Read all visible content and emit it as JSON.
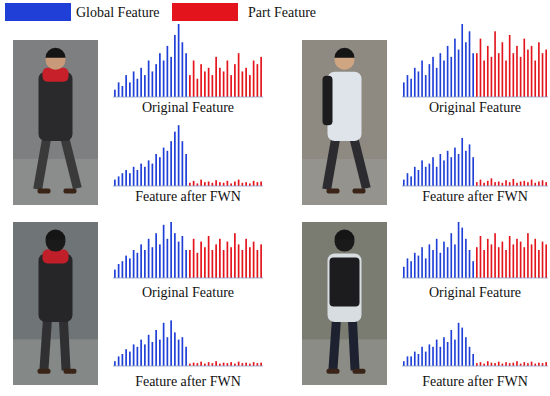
{
  "chart_data": [
    {
      "type": "bar",
      "title": "Original Feature",
      "tick_labels": false,
      "x": [
        1,
        2,
        3,
        4,
        5,
        6,
        7,
        8,
        9,
        10,
        11,
        12,
        13,
        14,
        15,
        16,
        17,
        18,
        19,
        20,
        21,
        22,
        23,
        24,
        25,
        26,
        27,
        28,
        29,
        30,
        31,
        32,
        33,
        34,
        35,
        36,
        37,
        38,
        39,
        40
      ],
      "xlim": [
        0.5,
        40.5
      ],
      "ylim": [
        0,
        1
      ],
      "series": [
        {
          "name": "Global Feature",
          "color": "#1f3fd6",
          "values": [
            0.1,
            0.2,
            0.15,
            0.3,
            0.2,
            0.35,
            0.25,
            0.4,
            0.3,
            0.5,
            0.35,
            0.45,
            0.6,
            0.5,
            0.7,
            0.55,
            0.85,
            1.0,
            0.75,
            0.6,
            null,
            null,
            null,
            null,
            null,
            null,
            null,
            null,
            null,
            null,
            null,
            null,
            null,
            null,
            null,
            null,
            null,
            null,
            null,
            null
          ]
        },
        {
          "name": "Part Feature",
          "color": "#e3141c",
          "values": [
            null,
            null,
            null,
            null,
            null,
            null,
            null,
            null,
            null,
            null,
            null,
            null,
            null,
            null,
            null,
            null,
            null,
            null,
            null,
            null,
            0.3,
            0.5,
            0.25,
            0.45,
            0.35,
            0.4,
            0.3,
            0.55,
            0.4,
            0.35,
            0.5,
            0.3,
            0.45,
            0.6,
            0.35,
            0.4,
            0.3,
            0.5,
            0.45,
            0.55
          ]
        }
      ]
    },
    {
      "type": "bar",
      "title": "Feature after FWN",
      "tick_labels": false,
      "x": [
        1,
        2,
        3,
        4,
        5,
        6,
        7,
        8,
        9,
        10,
        11,
        12,
        13,
        14,
        15,
        16,
        17,
        18,
        19,
        20,
        21,
        22,
        23,
        24,
        25,
        26,
        27,
        28,
        29,
        30,
        31,
        32,
        33,
        34,
        35,
        36,
        37,
        38,
        39,
        40
      ],
      "xlim": [
        0.5,
        40.5
      ],
      "ylim": [
        0,
        1
      ],
      "series": [
        {
          "name": "Global Feature",
          "color": "#1f3fd6",
          "values": [
            0.1,
            0.15,
            0.2,
            0.25,
            0.2,
            0.3,
            0.25,
            0.35,
            0.3,
            0.4,
            0.35,
            0.5,
            0.45,
            0.6,
            0.55,
            0.7,
            0.85,
            0.95,
            0.7,
            0.5,
            null,
            null,
            null,
            null,
            null,
            null,
            null,
            null,
            null,
            null,
            null,
            null,
            null,
            null,
            null,
            null,
            null,
            null,
            null,
            null
          ]
        },
        {
          "name": "Part Feature",
          "color": "#e3141c",
          "values": [
            null,
            null,
            null,
            null,
            null,
            null,
            null,
            null,
            null,
            null,
            null,
            null,
            null,
            null,
            null,
            null,
            null,
            null,
            null,
            null,
            0.05,
            0.08,
            0.04,
            0.1,
            0.06,
            0.07,
            0.05,
            0.09,
            0.06,
            0.05,
            0.08,
            0.04,
            0.07,
            0.1,
            0.05,
            0.06,
            0.04,
            0.08,
            0.06,
            0.07
          ]
        }
      ]
    },
    {
      "type": "bar",
      "title": "Original Feature",
      "tick_labels": false,
      "x": [
        1,
        2,
        3,
        4,
        5,
        6,
        7,
        8,
        9,
        10,
        11,
        12,
        13,
        14,
        15,
        16,
        17,
        18,
        19,
        20,
        21,
        22,
        23,
        24,
        25,
        26,
        27,
        28,
        29,
        30,
        31,
        32,
        33,
        34,
        35,
        36,
        37,
        38,
        39,
        40
      ],
      "xlim": [
        0.5,
        40.5
      ],
      "ylim": [
        0,
        1
      ],
      "series": [
        {
          "name": "Global Feature",
          "color": "#1f3fd6",
          "values": [
            0.2,
            0.3,
            0.25,
            0.4,
            0.35,
            0.5,
            0.3,
            0.45,
            0.55,
            0.4,
            0.6,
            0.5,
            0.7,
            0.55,
            0.8,
            0.65,
            1.0,
            0.75,
            0.9,
            0.6,
            null,
            null,
            null,
            null,
            null,
            null,
            null,
            null,
            null,
            null,
            null,
            null,
            null,
            null,
            null,
            null,
            null,
            null,
            null,
            null
          ]
        },
        {
          "name": "Part Feature",
          "color": "#e3141c",
          "values": [
            null,
            null,
            null,
            null,
            null,
            null,
            null,
            null,
            null,
            null,
            null,
            null,
            null,
            null,
            null,
            null,
            null,
            null,
            null,
            null,
            0.6,
            0.8,
            0.5,
            0.7,
            0.55,
            0.9,
            0.6,
            0.75,
            0.5,
            0.85,
            0.6,
            0.7,
            0.55,
            0.8,
            0.65,
            0.7,
            0.5,
            0.75,
            0.6,
            0.65
          ]
        }
      ]
    },
    {
      "type": "bar",
      "title": "Feature after FWN",
      "tick_labels": false,
      "x": [
        1,
        2,
        3,
        4,
        5,
        6,
        7,
        8,
        9,
        10,
        11,
        12,
        13,
        14,
        15,
        16,
        17,
        18,
        19,
        20,
        21,
        22,
        23,
        24,
        25,
        26,
        27,
        28,
        29,
        30,
        31,
        32,
        33,
        34,
        35,
        36,
        37,
        38,
        39,
        40
      ],
      "xlim": [
        0.5,
        40.5
      ],
      "ylim": [
        0,
        1
      ],
      "series": [
        {
          "name": "Global Feature",
          "color": "#1f3fd6",
          "values": [
            0.1,
            0.2,
            0.15,
            0.3,
            0.25,
            0.4,
            0.3,
            0.35,
            0.45,
            0.3,
            0.5,
            0.4,
            0.55,
            0.45,
            0.6,
            0.5,
            0.75,
            0.55,
            0.65,
            0.45,
            null,
            null,
            null,
            null,
            null,
            null,
            null,
            null,
            null,
            null,
            null,
            null,
            null,
            null,
            null,
            null,
            null,
            null,
            null,
            null
          ]
        },
        {
          "name": "Part Feature",
          "color": "#e3141c",
          "values": [
            null,
            null,
            null,
            null,
            null,
            null,
            null,
            null,
            null,
            null,
            null,
            null,
            null,
            null,
            null,
            null,
            null,
            null,
            null,
            null,
            0.06,
            0.1,
            0.05,
            0.08,
            0.12,
            0.06,
            0.07,
            0.05,
            0.09,
            0.06,
            0.11,
            0.05,
            0.07,
            0.08,
            0.06,
            0.1,
            0.05,
            0.07,
            0.09,
            0.06
          ]
        }
      ]
    },
    {
      "type": "bar",
      "title": "Original Feature",
      "tick_labels": false,
      "x": [
        1,
        2,
        3,
        4,
        5,
        6,
        7,
        8,
        9,
        10,
        11,
        12,
        13,
        14,
        15,
        16,
        17,
        18,
        19,
        20,
        21,
        22,
        23,
        24,
        25,
        26,
        27,
        28,
        29,
        30,
        31,
        32,
        33,
        34,
        35,
        36,
        37,
        38,
        39,
        40
      ],
      "xlim": [
        0.5,
        40.5
      ],
      "ylim": [
        0,
        1
      ],
      "series": [
        {
          "name": "Global Feature",
          "color": "#1f3fd6",
          "values": [
            0.15,
            0.25,
            0.3,
            0.4,
            0.35,
            0.5,
            0.45,
            0.6,
            0.5,
            0.7,
            0.55,
            0.8,
            0.6,
            0.95,
            0.7,
            1.0,
            0.8,
            0.65,
            0.75,
            0.5,
            null,
            null,
            null,
            null,
            null,
            null,
            null,
            null,
            null,
            null,
            null,
            null,
            null,
            null,
            null,
            null,
            null,
            null,
            null,
            null
          ]
        },
        {
          "name": "Part Feature",
          "color": "#e3141c",
          "values": [
            null,
            null,
            null,
            null,
            null,
            null,
            null,
            null,
            null,
            null,
            null,
            null,
            null,
            null,
            null,
            null,
            null,
            null,
            null,
            null,
            0.5,
            0.7,
            0.45,
            0.65,
            0.55,
            0.75,
            0.5,
            0.6,
            0.7,
            0.5,
            0.65,
            0.55,
            0.8,
            0.6,
            0.5,
            0.7,
            0.55,
            0.65,
            0.5,
            0.6
          ]
        }
      ]
    },
    {
      "type": "bar",
      "title": "Feature after FWN",
      "tick_labels": false,
      "x": [
        1,
        2,
        3,
        4,
        5,
        6,
        7,
        8,
        9,
        10,
        11,
        12,
        13,
        14,
        15,
        16,
        17,
        18,
        19,
        20,
        21,
        22,
        23,
        24,
        25,
        26,
        27,
        28,
        29,
        30,
        31,
        32,
        33,
        34,
        35,
        36,
        37,
        38,
        39,
        40
      ],
      "xlim": [
        0.5,
        40.5
      ],
      "ylim": [
        0,
        1
      ],
      "series": [
        {
          "name": "Global Feature",
          "color": "#1f3fd6",
          "values": [
            0.1,
            0.2,
            0.25,
            0.35,
            0.3,
            0.45,
            0.4,
            0.55,
            0.45,
            0.65,
            0.5,
            0.75,
            0.55,
            0.9,
            0.6,
            0.95,
            0.7,
            0.55,
            0.6,
            0.4,
            null,
            null,
            null,
            null,
            null,
            null,
            null,
            null,
            null,
            null,
            null,
            null,
            null,
            null,
            null,
            null,
            null,
            null,
            null,
            null
          ]
        },
        {
          "name": "Part Feature",
          "color": "#e3141c",
          "values": [
            null,
            null,
            null,
            null,
            null,
            null,
            null,
            null,
            null,
            null,
            null,
            null,
            null,
            null,
            null,
            null,
            null,
            null,
            null,
            null,
            0.05,
            0.07,
            0.06,
            0.09,
            0.05,
            0.08,
            0.06,
            0.1,
            0.05,
            0.07,
            0.06,
            0.08,
            0.05,
            0.09,
            0.06,
            0.07,
            0.05,
            0.08,
            0.06,
            0.07
          ]
        }
      ]
    },
    {
      "type": "bar",
      "title": "Original Feature",
      "tick_labels": false,
      "x": [
        1,
        2,
        3,
        4,
        5,
        6,
        7,
        8,
        9,
        10,
        11,
        12,
        13,
        14,
        15,
        16,
        17,
        18,
        19,
        20,
        21,
        22,
        23,
        24,
        25,
        26,
        27,
        28,
        29,
        30,
        31,
        32,
        33,
        34,
        35,
        36,
        37,
        38,
        39,
        40
      ],
      "xlim": [
        0.5,
        40.5
      ],
      "ylim": [
        0,
        1
      ],
      "series": [
        {
          "name": "Global Feature",
          "color": "#1f3fd6",
          "values": [
            0.2,
            0.35,
            0.3,
            0.45,
            0.4,
            0.55,
            0.35,
            0.6,
            0.5,
            0.7,
            0.45,
            0.65,
            0.55,
            0.8,
            0.6,
            1.0,
            0.9,
            0.7,
            0.5,
            0.3,
            null,
            null,
            null,
            null,
            null,
            null,
            null,
            null,
            null,
            null,
            null,
            null,
            null,
            null,
            null,
            null,
            null,
            null,
            null,
            null
          ]
        },
        {
          "name": "Part Feature",
          "color": "#e3141c",
          "values": [
            null,
            null,
            null,
            null,
            null,
            null,
            null,
            null,
            null,
            null,
            null,
            null,
            null,
            null,
            null,
            null,
            null,
            null,
            null,
            null,
            0.55,
            0.75,
            0.5,
            0.7,
            0.6,
            0.8,
            0.55,
            0.65,
            0.5,
            0.75,
            0.6,
            0.7,
            0.65,
            0.55,
            0.8,
            0.6,
            0.7,
            0.5,
            0.65,
            0.6
          ]
        }
      ]
    },
    {
      "type": "bar",
      "title": "Feature after FWN",
      "tick_labels": false,
      "x": [
        1,
        2,
        3,
        4,
        5,
        6,
        7,
        8,
        9,
        10,
        11,
        12,
        13,
        14,
        15,
        16,
        17,
        18,
        19,
        20,
        21,
        22,
        23,
        24,
        25,
        26,
        27,
        28,
        29,
        30,
        31,
        32,
        33,
        34,
        35,
        36,
        37,
        38,
        39,
        40
      ],
      "xlim": [
        0.5,
        40.5
      ],
      "ylim": [
        0,
        1
      ],
      "series": [
        {
          "name": "Global Feature",
          "color": "#1f3fd6",
          "values": [
            0.1,
            0.2,
            0.2,
            0.3,
            0.25,
            0.4,
            0.3,
            0.45,
            0.4,
            0.55,
            0.4,
            0.6,
            0.5,
            0.75,
            0.55,
            0.9,
            0.8,
            0.6,
            0.4,
            0.25,
            null,
            null,
            null,
            null,
            null,
            null,
            null,
            null,
            null,
            null,
            null,
            null,
            null,
            null,
            null,
            null,
            null,
            null,
            null,
            null
          ]
        },
        {
          "name": "Part Feature",
          "color": "#e3141c",
          "values": [
            null,
            null,
            null,
            null,
            null,
            null,
            null,
            null,
            null,
            null,
            null,
            null,
            null,
            null,
            null,
            null,
            null,
            null,
            null,
            null,
            0.06,
            0.08,
            0.05,
            0.1,
            0.07,
            0.06,
            0.09,
            0.05,
            0.08,
            0.06,
            0.07,
            0.1,
            0.05,
            0.08,
            0.06,
            0.09,
            0.05,
            0.07,
            0.06,
            0.08
          ]
        }
      ]
    }
  ]
}
